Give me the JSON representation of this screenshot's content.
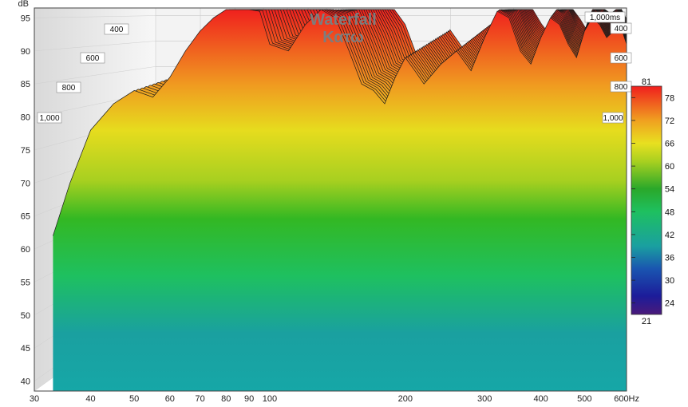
{
  "chart_data": {
    "type": "area",
    "title": "Waterfall",
    "subtitle": "Κατω",
    "ylabel": "dB",
    "xunit": "Hz",
    "x_scale": "log",
    "xlim": [
      30,
      620
    ],
    "ylim": [
      38.5,
      96.5
    ],
    "x_ticks": [
      30,
      40,
      50,
      60,
      70,
      80,
      90,
      100,
      200,
      300,
      400,
      500,
      600
    ],
    "x_tick_labels": [
      "30",
      "40",
      "50",
      "60",
      "70",
      "80",
      "90",
      "100",
      "200",
      "300",
      "400",
      "500",
      "600Hz"
    ],
    "y_ticks": [
      40,
      45,
      50,
      55,
      60,
      65,
      70,
      75,
      80,
      85,
      90,
      95
    ],
    "time_axis": {
      "left_labels": [
        "400",
        "600",
        "800",
        "1,000"
      ],
      "right_labels": [
        "1,000ms",
        "400",
        "600",
        "800",
        "1,000"
      ]
    },
    "colorbar": {
      "min": 21,
      "max": 81,
      "ticks": [
        78,
        72,
        66,
        60,
        54,
        48,
        42,
        36,
        30,
        24
      ],
      "min_label": "21",
      "max_label": "81"
    },
    "front_slice": {
      "freq": [
        33,
        36,
        40,
        45,
        50,
        55,
        60,
        65,
        70,
        75,
        80,
        85,
        90,
        95,
        100,
        110,
        120,
        130,
        140,
        150,
        160,
        170,
        180,
        190,
        200,
        210,
        220,
        240,
        260,
        280,
        300,
        320,
        340,
        360,
        380,
        400,
        420,
        440,
        460,
        480,
        500,
        520,
        540,
        560,
        580,
        600,
        620
      ],
      "db": [
        62,
        70,
        78,
        82,
        84,
        83,
        86,
        90,
        93,
        95,
        97,
        98,
        98,
        96,
        91,
        90,
        94,
        97,
        95,
        90,
        85,
        84,
        82,
        86,
        89,
        87,
        85,
        88,
        90,
        87,
        92,
        96,
        95,
        90,
        88,
        92,
        95,
        94,
        91,
        89,
        93,
        95,
        94,
        92,
        93,
        94,
        91
      ]
    }
  }
}
